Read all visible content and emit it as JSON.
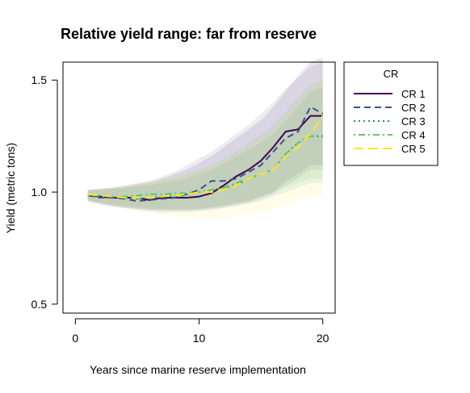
{
  "chart_data": {
    "type": "line",
    "title": "Relative yield range: far from reserve",
    "xlabel": "Years since marine reserve implementation",
    "ylabel": "Yield (metric tons)",
    "xlim": [
      -1,
      21
    ],
    "ylim": [
      0.46,
      1.58
    ],
    "xticks": [
      0,
      10,
      20
    ],
    "xtick_labels": [
      "0",
      "10",
      "20"
    ],
    "yticks": [
      0.5,
      1.0,
      1.5
    ],
    "ytick_labels": [
      "0.5",
      "1.0",
      "1.5"
    ],
    "x": [
      1,
      2,
      3,
      4,
      5,
      6,
      7,
      8,
      9,
      10,
      11,
      12,
      13,
      14,
      15,
      16,
      17,
      18,
      19,
      20
    ],
    "legend": {
      "title": "CR",
      "position": "right"
    },
    "grid": false,
    "series": [
      {
        "name": "CR 1",
        "color": "#440154",
        "dash": "solid",
        "values": [
          0.985,
          0.98,
          0.975,
          0.975,
          0.975,
          0.965,
          0.975,
          0.975,
          0.975,
          0.98,
          0.995,
          1.03,
          1.07,
          1.1,
          1.14,
          1.2,
          1.27,
          1.28,
          1.34,
          1.34
        ],
        "band_low": [
          0.96,
          0.945,
          0.935,
          0.93,
          0.925,
          0.92,
          0.92,
          0.92,
          0.92,
          0.925,
          0.93,
          0.94,
          0.95,
          0.96,
          0.98,
          1.0,
          1.05,
          1.08,
          1.12,
          1.12
        ],
        "band_high": [
          1.01,
          1.015,
          1.02,
          1.025,
          1.035,
          1.045,
          1.06,
          1.08,
          1.1,
          1.13,
          1.16,
          1.2,
          1.24,
          1.28,
          1.32,
          1.38,
          1.45,
          1.52,
          1.58,
          1.6
        ]
      },
      {
        "name": "CR 2",
        "color": "#3b528b",
        "dash": "dashed",
        "values": [
          0.985,
          0.975,
          0.975,
          0.97,
          0.96,
          0.965,
          0.97,
          0.975,
          0.99,
          1.01,
          1.05,
          1.05,
          1.06,
          1.09,
          1.12,
          1.18,
          1.24,
          1.27,
          1.38,
          1.35
        ],
        "band_low": [
          0.96,
          0.95,
          0.94,
          0.93,
          0.92,
          0.915,
          0.91,
          0.91,
          0.91,
          0.915,
          0.92,
          0.93,
          0.94,
          0.95,
          0.97,
          0.99,
          1.03,
          1.06,
          1.1,
          1.1
        ],
        "band_high": [
          1.01,
          1.015,
          1.02,
          1.03,
          1.04,
          1.05,
          1.07,
          1.09,
          1.12,
          1.15,
          1.18,
          1.22,
          1.26,
          1.3,
          1.35,
          1.4,
          1.46,
          1.51,
          1.56,
          1.58
        ]
      },
      {
        "name": "CR 3",
        "color": "#21908d",
        "dash": "dotted",
        "values": [
          0.985,
          0.98,
          0.98,
          0.975,
          0.97,
          0.975,
          0.98,
          0.985,
          0.99,
          1.0,
          1.01,
          1.02,
          1.03,
          1.06,
          1.08,
          1.1,
          1.17,
          1.22,
          1.25,
          1.25
        ],
        "band_low": [
          0.965,
          0.95,
          0.94,
          0.935,
          0.93,
          0.925,
          0.92,
          0.92,
          0.92,
          0.92,
          0.925,
          0.93,
          0.94,
          0.95,
          0.96,
          0.98,
          1.0,
          1.02,
          1.04,
          1.04
        ],
        "band_high": [
          1.005,
          1.01,
          1.015,
          1.02,
          1.025,
          1.03,
          1.04,
          1.05,
          1.06,
          1.08,
          1.1,
          1.13,
          1.16,
          1.19,
          1.22,
          1.26,
          1.32,
          1.38,
          1.45,
          1.47
        ]
      },
      {
        "name": "CR 4",
        "color": "#5ec962",
        "dash": "dotdash",
        "values": [
          0.985,
          0.985,
          0.98,
          0.98,
          0.985,
          0.99,
          0.99,
          0.995,
          0.995,
          1.0,
          1.01,
          1.02,
          1.04,
          1.06,
          1.08,
          1.1,
          1.17,
          1.22,
          1.25,
          1.245
        ],
        "band_low": [
          0.965,
          0.955,
          0.945,
          0.94,
          0.935,
          0.93,
          0.93,
          0.93,
          0.93,
          0.93,
          0.935,
          0.94,
          0.95,
          0.96,
          0.98,
          1.0,
          1.02,
          1.04,
          1.06,
          1.06
        ],
        "band_high": [
          1.005,
          1.01,
          1.015,
          1.02,
          1.03,
          1.04,
          1.05,
          1.06,
          1.08,
          1.1,
          1.12,
          1.15,
          1.18,
          1.22,
          1.26,
          1.3,
          1.36,
          1.42,
          1.48,
          1.5
        ]
      },
      {
        "name": "CR 5",
        "color": "#fde725",
        "dash": "longdash",
        "values": [
          0.99,
          0.985,
          0.98,
          0.975,
          0.975,
          0.975,
          0.98,
          0.985,
          0.99,
          1.0,
          1.0,
          1.01,
          1.03,
          1.06,
          1.08,
          1.1,
          1.16,
          1.2,
          1.26,
          1.34
        ],
        "band_low": [
          0.965,
          0.95,
          0.935,
          0.925,
          0.915,
          0.905,
          0.9,
          0.895,
          0.89,
          0.885,
          0.885,
          0.885,
          0.89,
          0.9,
          0.91,
          0.92,
          0.94,
          0.96,
          0.98,
          0.98
        ],
        "band_high": [
          1.01,
          1.015,
          1.02,
          1.03,
          1.04,
          1.05,
          1.06,
          1.07,
          1.08,
          1.1,
          1.12,
          1.14,
          1.17,
          1.2,
          1.24,
          1.28,
          1.34,
          1.4,
          1.46,
          1.5
        ]
      }
    ]
  }
}
